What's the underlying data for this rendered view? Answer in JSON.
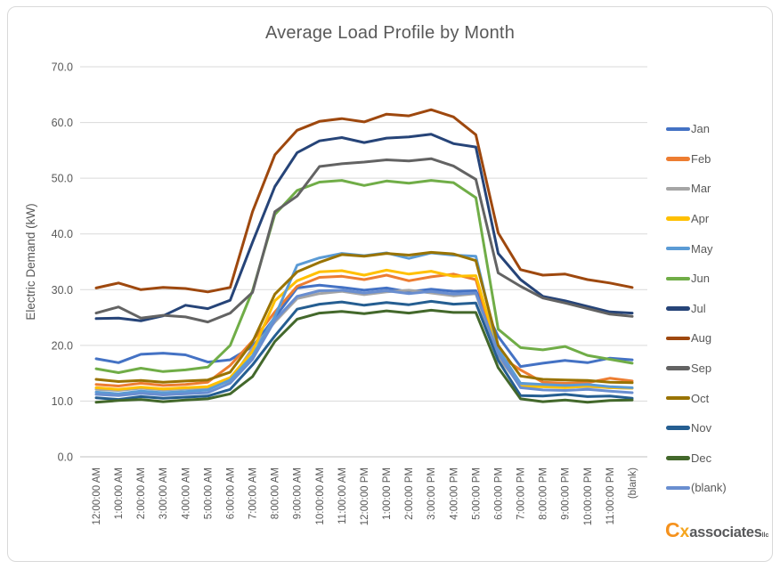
{
  "frame": {
    "background": "#ffffff",
    "border_color": "#D9D9D9"
  },
  "logo": {
    "prefix": "C",
    "prefix2": "x",
    "name": "associates",
    "suffix": "llc"
  },
  "chart_data": {
    "type": "line",
    "title": "Average Load Profile by Month",
    "xlabel": "",
    "ylabel": "Electric Demand (kW)",
    "ylim": [
      0,
      70
    ],
    "ytick_step": 10,
    "ytick_labels": [
      "70.0",
      "60.0",
      "50.0",
      "40.0",
      "30.0",
      "20.0",
      "10.0",
      "0.0"
    ],
    "grid": true,
    "gridline_color": "#D9D9D9",
    "axis_line_color": "#BFBFBF",
    "label_color": "#595959",
    "legend_position": "right",
    "categories": [
      "12:00:00 AM",
      "1:00:00 AM",
      "2:00:00 AM",
      "3:00:00 AM",
      "4:00:00 AM",
      "5:00:00 AM",
      "6:00:00 AM",
      "7:00:00 AM",
      "8:00:00 AM",
      "9:00:00 AM",
      "10:00:00 AM",
      "11:00:00 AM",
      "12:00:00 PM",
      "1:00:00 PM",
      "2:00:00 PM",
      "3:00:00 PM",
      "4:00:00 PM",
      "5:00:00 PM",
      "6:00:00 PM",
      "7:00:00 PM",
      "8:00:00 PM",
      "9:00:00 PM",
      "10:00:00 PM",
      "11:00:00 PM",
      "(blank)"
    ],
    "series": [
      {
        "name": "Jan",
        "color": "#4472C4",
        "values": [
          17.6,
          16.9,
          18.4,
          18.6,
          18.3,
          17.0,
          17.4,
          19.8,
          25.0,
          30.3,
          30.8,
          30.4,
          29.9,
          30.3,
          29.6,
          30.1,
          29.7,
          29.8,
          21.6,
          16.2,
          16.8,
          17.3,
          16.9,
          17.7,
          17.4
        ]
      },
      {
        "name": "Feb",
        "color": "#ED7D31",
        "values": [
          13.0,
          12.7,
          13.2,
          12.8,
          13.0,
          13.4,
          16.4,
          20.8,
          26.0,
          30.6,
          32.2,
          32.4,
          31.8,
          32.6,
          31.6,
          32.3,
          32.8,
          31.8,
          18.2,
          15.6,
          13.4,
          13.2,
          13.3,
          14.1,
          13.6
        ]
      },
      {
        "name": "Mar",
        "color": "#A5A5A5",
        "values": [
          12.1,
          11.9,
          12.3,
          12.0,
          12.2,
          12.4,
          13.6,
          19.5,
          24.2,
          28.4,
          29.3,
          29.7,
          29.1,
          29.6,
          29.9,
          29.4,
          28.9,
          29.3,
          17.8,
          12.8,
          12.6,
          12.5,
          12.6,
          12.4,
          12.3
        ]
      },
      {
        "name": "Apr",
        "color": "#FFC000",
        "values": [
          12.4,
          12.1,
          12.5,
          12.2,
          12.4,
          12.6,
          14.2,
          18.9,
          28.0,
          31.6,
          33.2,
          33.4,
          32.6,
          33.5,
          32.8,
          33.3,
          32.4,
          32.5,
          18.9,
          12.6,
          12.6,
          12.4,
          12.7,
          12.4,
          12.3
        ]
      },
      {
        "name": "May",
        "color": "#5B9BD5",
        "values": [
          11.6,
          11.3,
          11.8,
          11.5,
          11.7,
          12.0,
          13.8,
          18.1,
          25.2,
          34.4,
          35.7,
          36.5,
          36.1,
          36.6,
          35.6,
          36.6,
          36.2,
          36.0,
          19.3,
          13.2,
          13.0,
          12.8,
          13.0,
          12.6,
          12.4
        ]
      },
      {
        "name": "Jun",
        "color": "#70AD47",
        "values": [
          15.8,
          15.1,
          15.9,
          15.3,
          15.6,
          16.1,
          20.0,
          29.8,
          43.5,
          47.8,
          49.3,
          49.6,
          48.7,
          49.5,
          49.1,
          49.6,
          49.2,
          46.5,
          22.9,
          19.6,
          19.2,
          19.8,
          18.2,
          17.5,
          16.8
        ]
      },
      {
        "name": "Jul",
        "color": "#264478",
        "values": [
          24.8,
          24.9,
          24.4,
          25.3,
          27.2,
          26.6,
          28.1,
          38.5,
          48.5,
          54.6,
          56.7,
          57.3,
          56.4,
          57.2,
          57.4,
          57.9,
          56.2,
          55.6,
          36.5,
          31.8,
          28.8,
          28.0,
          27.0,
          26.0,
          25.8
        ]
      },
      {
        "name": "Aug",
        "color": "#9E480E",
        "values": [
          30.3,
          31.2,
          30.0,
          30.4,
          30.2,
          29.6,
          30.4,
          44.0,
          54.2,
          58.6,
          60.2,
          60.7,
          60.1,
          61.5,
          61.2,
          62.3,
          61.0,
          57.8,
          40.2,
          33.6,
          32.6,
          32.8,
          31.8,
          31.2,
          30.4
        ]
      },
      {
        "name": "Sep",
        "color": "#636363",
        "values": [
          25.8,
          26.9,
          24.9,
          25.4,
          25.1,
          24.2,
          25.8,
          29.5,
          44.0,
          46.8,
          52.1,
          52.6,
          52.9,
          53.3,
          53.1,
          53.5,
          52.2,
          49.8,
          33.0,
          30.6,
          28.5,
          27.6,
          26.6,
          25.6,
          25.2
        ]
      },
      {
        "name": "Oct",
        "color": "#997300",
        "values": [
          13.9,
          13.5,
          13.7,
          13.4,
          13.6,
          13.8,
          15.2,
          20.6,
          29.2,
          33.2,
          34.9,
          36.3,
          36.0,
          36.5,
          36.2,
          36.7,
          36.4,
          35.2,
          20.0,
          14.5,
          13.9,
          13.8,
          13.7,
          13.4,
          13.3
        ]
      },
      {
        "name": "Nov",
        "color": "#255E91",
        "values": [
          10.6,
          10.3,
          10.8,
          10.5,
          10.7,
          10.9,
          12.1,
          16.5,
          21.7,
          26.5,
          27.4,
          27.8,
          27.2,
          27.7,
          27.3,
          27.9,
          27.4,
          27.6,
          17.3,
          11.0,
          10.9,
          11.2,
          10.8,
          10.9,
          10.5
        ]
      },
      {
        "name": "Dec",
        "color": "#43682B",
        "values": [
          9.8,
          10.1,
          10.3,
          9.9,
          10.2,
          10.4,
          11.3,
          14.4,
          20.7,
          24.7,
          25.8,
          26.1,
          25.7,
          26.2,
          25.8,
          26.3,
          25.9,
          25.9,
          16.0,
          10.4,
          9.9,
          10.2,
          9.8,
          10.1,
          10.2
        ]
      },
      {
        "name": "(blank)",
        "color": "#698ED0",
        "values": [
          11.2,
          11.0,
          11.4,
          11.1,
          11.3,
          11.5,
          13.2,
          17.5,
          24.5,
          28.8,
          29.8,
          29.9,
          29.4,
          29.8,
          29.3,
          29.7,
          29.2,
          29.4,
          18.5,
          12.4,
          12.0,
          11.9,
          12.1,
          11.8,
          11.5
        ]
      }
    ]
  }
}
